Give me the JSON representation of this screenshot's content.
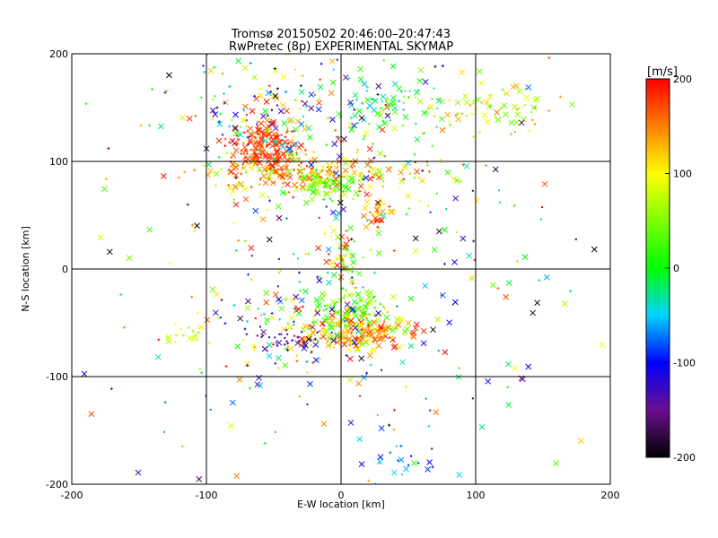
{
  "chart_data": {
    "type": "scatter",
    "title": "Tromsø 20150502 20:46:00–20:47:43",
    "subtitle": "RwPretec (8p) EXPERIMENTAL SKYMAP",
    "xlabel": "E-W location [km]",
    "ylabel": "N-S location [km]",
    "xlim": [
      -200,
      200
    ],
    "ylim": [
      -200,
      200
    ],
    "x_ticks": [
      "-200",
      "-100",
      "0",
      "100",
      "200"
    ],
    "y_ticks": [
      "-200",
      "-100",
      "0",
      "100",
      "200"
    ],
    "grid_lines_x": [
      -100,
      0,
      100
    ],
    "grid_lines_y": [
      -100,
      0,
      100
    ],
    "markers": [
      "x",
      "+",
      "dot"
    ],
    "colorbar": {
      "label": "[m/s]",
      "range": [
        -200,
        200
      ],
      "ticks": [
        "200",
        "100",
        "0",
        "-100",
        "-200"
      ],
      "colormap": [
        "#000000",
        "#6a0f8e",
        "#0000ff",
        "#00d4ff",
        "#00ff00",
        "#ffff00",
        "#ff8000",
        "#ff0000"
      ]
    },
    "clusters": [
      {
        "x": -58,
        "y": 112,
        "sx": 12,
        "sy": 14,
        "vmin": 150,
        "vmax": 200,
        "n": 190
      },
      {
        "x": -20,
        "y": 88,
        "sx": 40,
        "sy": 10,
        "vmin": 40,
        "vmax": 200,
        "n": 240
      },
      {
        "x": -10,
        "y": 78,
        "sx": 12,
        "sy": 6,
        "vmin": 0,
        "vmax": 80,
        "n": 70
      },
      {
        "x": 35,
        "y": 150,
        "sx": 20,
        "sy": 14,
        "vmin": -60,
        "vmax": 60,
        "n": 80
      },
      {
        "x": 115,
        "y": 148,
        "sx": 22,
        "sy": 10,
        "vmin": 30,
        "vmax": 160,
        "n": 70
      },
      {
        "x": -40,
        "y": 150,
        "sx": 40,
        "sy": 25,
        "vmin": -200,
        "vmax": 200,
        "n": 150
      },
      {
        "x": 28,
        "y": 50,
        "sx": 6,
        "sy": 10,
        "vmin": 100,
        "vmax": 200,
        "n": 40
      },
      {
        "x": 0,
        "y": 15,
        "sx": 7,
        "sy": 15,
        "vmin": -50,
        "vmax": 200,
        "n": 50
      },
      {
        "x": 5,
        "y": -42,
        "sx": 14,
        "sy": 12,
        "vmin": 0,
        "vmax": 80,
        "n": 130
      },
      {
        "x": 15,
        "y": -60,
        "sx": 22,
        "sy": 8,
        "vmin": 80,
        "vmax": 200,
        "n": 160
      },
      {
        "x": -30,
        "y": -55,
        "sx": 30,
        "sy": 20,
        "vmin": -200,
        "vmax": 200,
        "n": 110
      },
      {
        "x": -40,
        "y": -65,
        "sx": 10,
        "sy": 5,
        "vmin": -180,
        "vmax": -110,
        "n": 25
      },
      {
        "x": -110,
        "y": -62,
        "sx": 12,
        "sy": 6,
        "vmin": 60,
        "vmax": 110,
        "n": 20
      },
      {
        "x": 40,
        "y": -180,
        "sx": 15,
        "sy": 10,
        "vmin": -110,
        "vmax": -40,
        "n": 20
      },
      {
        "x": 0,
        "y": 0,
        "sx": 95,
        "sy": 110,
        "vmin": -200,
        "vmax": 200,
        "n": 320
      }
    ]
  }
}
